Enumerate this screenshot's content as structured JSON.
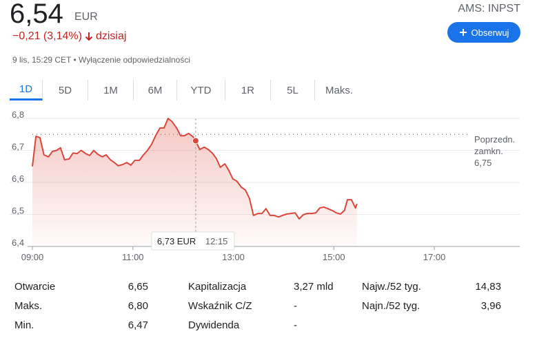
{
  "header": {
    "price": "6,54",
    "currency": "EUR",
    "change": "−0,21 (3,14%)",
    "period": "dzisiaj",
    "timestamp": "9 lis, 15:29 CET",
    "disclaimer": "Wyłączenie odpowiedzialności",
    "ticker": "AMS: INPST",
    "follow_button": "Obserwuj"
  },
  "tabs": [
    "1D",
    "5D",
    "1M",
    "6M",
    "YTD",
    "1R",
    "5L",
    "Maks."
  ],
  "selected_tab": 0,
  "chart_data": {
    "type": "line",
    "color": "#d9463b",
    "x": [
      9.0,
      9.07,
      9.15,
      9.23,
      9.32,
      9.4,
      9.48,
      9.56,
      9.64,
      9.73,
      9.81,
      9.89,
      9.97,
      10.06,
      10.14,
      10.22,
      10.3,
      10.39,
      10.47,
      10.55,
      10.63,
      10.71,
      10.8,
      10.88,
      10.96,
      11.04,
      11.13,
      11.21,
      11.29,
      11.37,
      11.46,
      11.54,
      11.62,
      11.7,
      11.78,
      11.87,
      11.95,
      12.03,
      12.11,
      12.2,
      12.25,
      12.33,
      12.42,
      12.5,
      12.58,
      12.66,
      12.74,
      12.83,
      12.91,
      12.99,
      13.07,
      13.16,
      13.24,
      13.32,
      13.4,
      13.49,
      13.57,
      13.65,
      13.73,
      13.81,
      13.9,
      13.98,
      14.06,
      14.14,
      14.23,
      14.31,
      14.39,
      14.47,
      14.56,
      14.64,
      14.72,
      14.8,
      14.88,
      14.97,
      15.05,
      15.13,
      15.21,
      15.27,
      15.35,
      15.43,
      15.46
    ],
    "values": [
      6.65,
      6.744,
      6.74,
      6.686,
      6.68,
      6.697,
      6.7,
      6.708,
      6.671,
      6.673,
      6.692,
      6.69,
      6.7,
      6.69,
      6.684,
      6.7,
      6.688,
      6.68,
      6.686,
      6.671,
      6.662,
      6.652,
      6.656,
      6.662,
      6.654,
      6.669,
      6.669,
      6.686,
      6.7,
      6.718,
      6.748,
      6.77,
      6.77,
      6.8,
      6.79,
      6.77,
      6.746,
      6.746,
      6.753,
      6.742,
      6.73,
      6.703,
      6.71,
      6.703,
      6.692,
      6.675,
      6.647,
      6.658,
      6.637,
      6.611,
      6.604,
      6.585,
      6.576,
      6.55,
      6.497,
      6.503,
      6.503,
      6.518,
      6.497,
      6.497,
      6.492,
      6.497,
      6.501,
      6.503,
      6.505,
      6.486,
      6.499,
      6.503,
      6.503,
      6.505,
      6.52,
      6.523,
      6.518,
      6.512,
      6.505,
      6.501,
      6.512,
      6.546,
      6.546,
      6.52,
      6.533
    ],
    "xlim": [
      9,
      18.7
    ],
    "xticks": [
      {
        "value": 9,
        "label": "09:00"
      },
      {
        "value": 11,
        "label": "11:00"
      },
      {
        "value": 13,
        "label": "13:00"
      },
      {
        "value": 15,
        "label": "15:00"
      },
      {
        "value": 17,
        "label": "17:00"
      }
    ],
    "ylim": [
      6.4,
      6.83
    ],
    "yticks": [
      {
        "value": 6.4,
        "label": "6,4"
      },
      {
        "value": 6.5,
        "label": "6,5"
      },
      {
        "value": 6.6,
        "label": "6,6"
      },
      {
        "value": 6.7,
        "label": "6,7"
      },
      {
        "value": 6.8,
        "label": "6,8"
      }
    ],
    "grid": true,
    "previous_close": {
      "label_lines": [
        "Poprzedn.",
        "zamkn."
      ],
      "value": 6.75,
      "value_label": "6,75"
    },
    "tooltip": {
      "index": 40,
      "price": "6,73 EUR",
      "time": "12:15"
    }
  },
  "stats": [
    [
      [
        "Otwarcie",
        "6,65"
      ],
      [
        "Kapitalizacja",
        "3,27 mld"
      ],
      [
        "Najw./52 tyg.",
        "14,83"
      ]
    ],
    [
      [
        "Maks.",
        "6,80"
      ],
      [
        "Wskaźnik C/Z",
        "-"
      ],
      [
        "Najn./52 tyg.",
        "3,96"
      ]
    ],
    [
      [
        "Min.",
        "6,47"
      ],
      [
        "Dywidenda",
        "-"
      ]
    ]
  ]
}
